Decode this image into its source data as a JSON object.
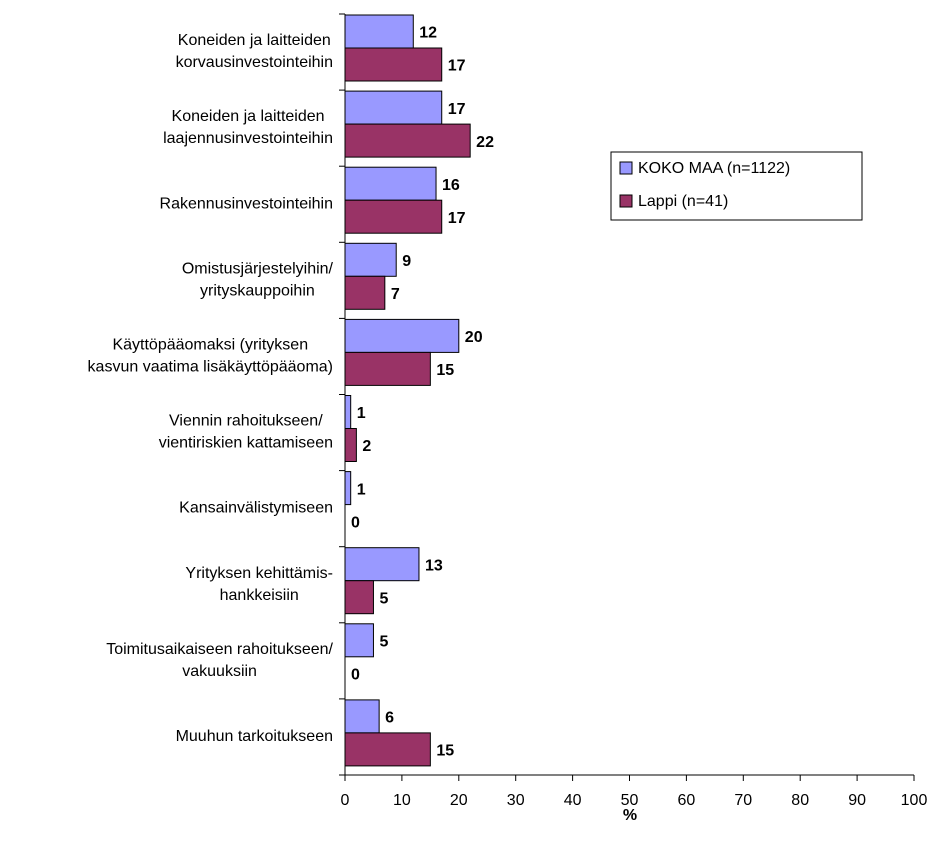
{
  "chart_data": {
    "type": "bar",
    "orientation": "horizontal",
    "categories": [
      "Koneiden ja laitteiden\nkorvausinvestointeihin",
      "Koneiden ja laitteiden\nlaajennusinvestointeihin",
      "Rakennusinvestointeihin",
      "Omistusjärjestelyihin/\nyrityskauppoihin",
      "Käyttöpääomaksi (yrityksen\nkasvun vaatima lisäkäyttöpääoma)",
      "Viennin rahoitukseen/\nvientiriskien kattamiseen",
      "Kansainvälistymiseen",
      "Yrityksen kehittämis-\nhankkeisiin",
      "Toimitusaikaiseen rahoitukseen/\nvakuuksiin",
      "Muuhun tarkoitukseen"
    ],
    "series": [
      {
        "name": "KOKO MAA (n=1122)",
        "color": "#9999ff",
        "values": [
          12,
          17,
          16,
          9,
          20,
          1,
          1,
          13,
          5,
          6
        ]
      },
      {
        "name": "Lappi (n=41)",
        "color": "#993366",
        "values": [
          17,
          22,
          17,
          7,
          15,
          2,
          0,
          5,
          0,
          15
        ]
      }
    ],
    "xlim": [
      0,
      100
    ],
    "xticks": [
      0,
      10,
      20,
      30,
      40,
      50,
      60,
      70,
      80,
      90,
      100
    ],
    "xlabel": "%",
    "legend": "right",
    "grid": false
  }
}
